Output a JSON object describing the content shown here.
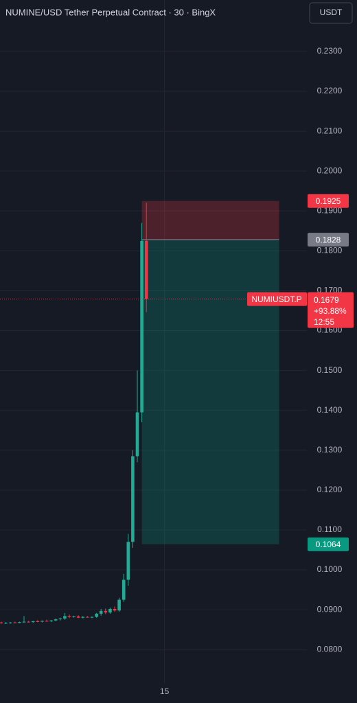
{
  "chart_data": {
    "type": "candlestick",
    "title": "NUMINE/USD Tether Perpetual Contract · 30 · BingX",
    "currency_button": "USDT",
    "categories": [
      null,
      null,
      null,
      null,
      null,
      null,
      null,
      null,
      null,
      null,
      null,
      null,
      null,
      null,
      null,
      null,
      null,
      null,
      null,
      null,
      null,
      null,
      null,
      null,
      null,
      null,
      null,
      null,
      null,
      null,
      null,
      null,
      null,
      null,
      null,
      null,
      "15"
    ],
    "open": [
      0.0868,
      0.0866,
      0.0867,
      0.0868,
      0.0867,
      0.0869,
      0.087,
      0.0869,
      0.0871,
      0.087,
      0.0872,
      0.0871,
      0.0873,
      0.0876,
      0.0878,
      0.0884,
      0.0882,
      0.0883,
      0.088,
      0.0882,
      0.0881,
      0.0882,
      0.089,
      0.0897,
      0.0893,
      0.0902,
      0.0898,
      0.0925,
      0.0975,
      0.107,
      0.1285,
      0.1395,
      0.1825,
      null,
      null,
      null,
      null
    ],
    "high": [
      0.087,
      0.0869,
      0.0869,
      0.087,
      0.087,
      0.0884,
      0.0872,
      0.0872,
      0.0874,
      0.0873,
      0.0875,
      0.0874,
      0.0878,
      0.088,
      0.0892,
      0.0888,
      0.0885,
      0.0886,
      0.0884,
      0.0884,
      0.0883,
      0.0892,
      0.0902,
      0.0903,
      0.0905,
      0.0908,
      0.093,
      0.099,
      0.109,
      0.13,
      0.15,
      0.187,
      0.1921,
      null,
      null,
      null,
      null
    ],
    "low": [
      0.0865,
      0.0864,
      0.0865,
      0.0866,
      0.0866,
      0.0867,
      0.0868,
      0.0867,
      0.0869,
      0.0868,
      0.087,
      0.0869,
      0.0871,
      0.0873,
      0.0875,
      0.0879,
      0.088,
      0.0879,
      0.0878,
      0.088,
      0.0879,
      0.088,
      0.0885,
      0.0889,
      0.089,
      0.0895,
      0.0895,
      0.092,
      0.096,
      0.1055,
      0.127,
      0.137,
      0.1646,
      null,
      null,
      null,
      null
    ],
    "close": [
      0.0866,
      0.0867,
      0.0868,
      0.0867,
      0.0869,
      0.087,
      0.0869,
      0.0871,
      0.087,
      0.0872,
      0.0871,
      0.0873,
      0.0876,
      0.0878,
      0.0884,
      0.0882,
      0.0883,
      0.088,
      0.0882,
      0.0881,
      0.0882,
      0.089,
      0.0897,
      0.0893,
      0.0902,
      0.0898,
      0.0925,
      0.0975,
      0.107,
      0.1285,
      0.1395,
      0.1825,
      0.1679,
      null,
      null,
      null,
      null
    ],
    "up_color": "#22ab94",
    "down_color": "#f23645",
    "ylim": [
      0.0716,
      0.2429
    ],
    "yticks": [
      {
        "value": 0.08,
        "label": "0.0800"
      },
      {
        "value": 0.09,
        "label": "0.0900"
      },
      {
        "value": 0.1,
        "label": "0.1000"
      },
      {
        "value": 0.11,
        "label": "0.1100"
      },
      {
        "value": 0.12,
        "label": "0.1200"
      },
      {
        "value": 0.13,
        "label": "0.1300"
      },
      {
        "value": 0.14,
        "label": "0.1400"
      },
      {
        "value": 0.15,
        "label": "0.1500"
      },
      {
        "value": 0.16,
        "label": "0.1600"
      },
      {
        "value": 0.17,
        "label": "0.1700"
      },
      {
        "value": 0.18,
        "label": "0.1800"
      },
      {
        "value": 0.19,
        "label": "0.1900"
      },
      {
        "value": 0.2,
        "label": "0.2000"
      },
      {
        "value": 0.21,
        "label": "0.2100"
      },
      {
        "value": 0.22,
        "label": "0.2200"
      },
      {
        "value": 0.23,
        "label": "0.2300"
      }
    ],
    "grid": true,
    "position": {
      "stop": 0.1925,
      "entry": 0.1828,
      "target": 0.1064
    },
    "last": {
      "symbol": "NUMIUSDT.P",
      "price": 0.1679,
      "change": 93.88,
      "change_label": "+93.88%",
      "countdown": "12:55"
    }
  }
}
